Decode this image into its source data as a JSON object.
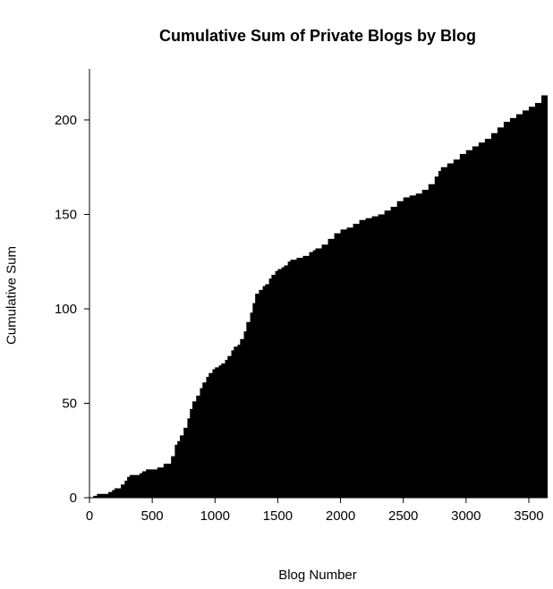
{
  "chart_data": {
    "type": "area",
    "title": "Cumulative Sum of Private Blogs by Blog",
    "xlabel": "Blog Number",
    "ylabel": "Cumulative Sum",
    "xlim": [
      0,
      3650
    ],
    "ylim": [
      0,
      227
    ],
    "xticks": [
      0,
      500,
      1000,
      1500,
      2000,
      2500,
      3000,
      3500
    ],
    "yticks": [
      0,
      50,
      100,
      150,
      200
    ],
    "grid": false,
    "legend": "none",
    "fill_color": "#000000",
    "series": [
      {
        "x": [
          0,
          30,
          60,
          100,
          150,
          180,
          200,
          250,
          280,
          300,
          320,
          350,
          400,
          420,
          450,
          480,
          500,
          540,
          590,
          600,
          620,
          650,
          680,
          700,
          720,
          750,
          780,
          800,
          820,
          850,
          880,
          900,
          930,
          950,
          980,
          1000,
          1030,
          1050,
          1080,
          1100,
          1130,
          1150,
          1180,
          1200,
          1230,
          1250,
          1280,
          1300,
          1320,
          1350,
          1380,
          1400,
          1430,
          1450,
          1480,
          1500,
          1530,
          1550,
          1580,
          1600,
          1650,
          1700,
          1750,
          1780,
          1800,
          1850,
          1900,
          1950,
          2000,
          2050,
          2100,
          2150,
          2200,
          2250,
          2300,
          2350,
          2400,
          2450,
          2500,
          2550,
          2600,
          2650,
          2700,
          2750,
          2780,
          2800,
          2850,
          2900,
          2950,
          3000,
          3050,
          3100,
          3150,
          3200,
          3250,
          3300,
          3350,
          3400,
          3450,
          3500,
          3550,
          3600,
          3650
        ],
        "y": [
          0,
          1,
          2,
          2,
          3,
          4,
          5,
          7,
          9,
          11,
          12,
          12,
          13,
          14,
          15,
          15,
          15,
          16,
          18,
          18,
          18,
          22,
          28,
          30,
          33,
          37,
          42,
          47,
          51,
          54,
          58,
          61,
          64,
          66,
          68,
          69,
          70,
          71,
          73,
          75,
          78,
          80,
          81,
          84,
          88,
          93,
          98,
          103,
          108,
          110,
          112,
          113,
          116,
          118,
          120,
          121,
          122,
          123,
          125,
          126,
          127,
          128,
          130,
          131,
          132,
          134,
          137,
          140,
          142,
          143,
          145,
          147,
          148,
          149,
          150,
          152,
          154,
          157,
          159,
          160,
          161,
          163,
          166,
          170,
          173,
          175,
          177,
          179,
          182,
          184,
          186,
          188,
          190,
          193,
          196,
          199,
          201,
          203,
          205,
          207,
          209,
          213,
          218
        ]
      }
    ]
  }
}
